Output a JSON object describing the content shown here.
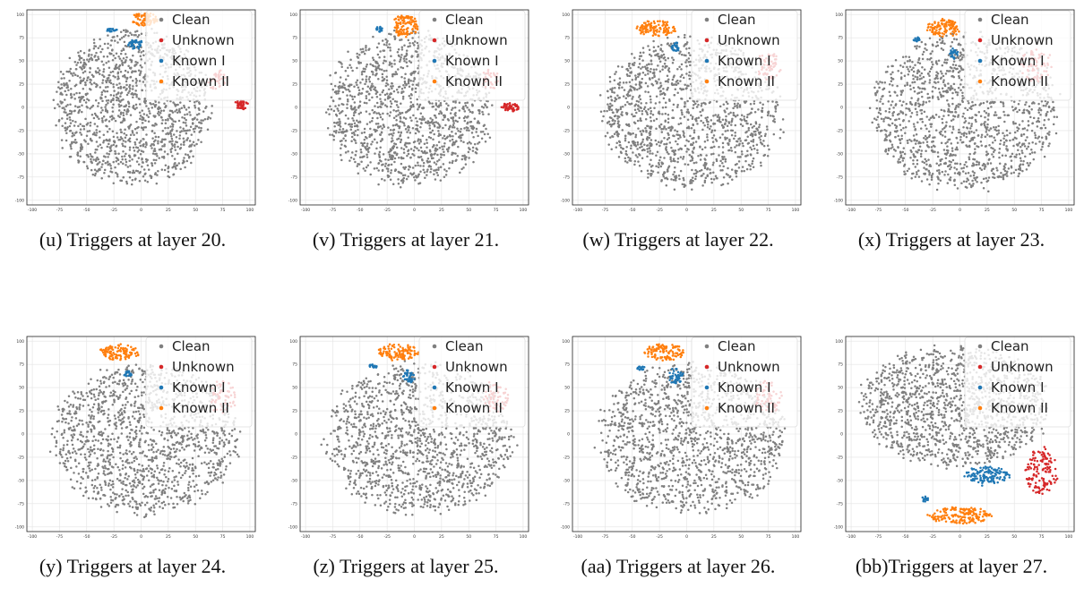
{
  "legend": {
    "entries": [
      {
        "label": "Clean",
        "color": "#7f7f7f"
      },
      {
        "label": "Unknown",
        "color": "#d62728"
      },
      {
        "label": "Known I",
        "color": "#1f77b4"
      },
      {
        "label": "Known II",
        "color": "#ff7f0e"
      }
    ]
  },
  "chart_data": [
    {
      "type": "scatter",
      "caption": "(u) Triggers at layer 20.",
      "xlim": [
        -105,
        105
      ],
      "ylim": [
        -105,
        105
      ],
      "xticks": [
        -100,
        -75,
        -50,
        -25,
        0,
        25,
        50,
        75,
        100
      ],
      "yticks": [
        100,
        75,
        50,
        25,
        0,
        -25,
        -50,
        -75,
        -100
      ],
      "clusters": [
        {
          "series": "Clean",
          "cx": -8,
          "cy": 0,
          "rx": 70,
          "ry": 82,
          "n": 1400
        },
        {
          "series": "Known II",
          "cx": 3,
          "cy": 95,
          "rx": 12,
          "ry": 7,
          "n": 90
        },
        {
          "series": "Known I",
          "cx": -27,
          "cy": 83,
          "rx": 5,
          "ry": 2,
          "n": 20
        },
        {
          "series": "Known I",
          "cx": -5,
          "cy": 68,
          "rx": 7,
          "ry": 5,
          "n": 35
        },
        {
          "series": "Unknown",
          "cx": 92,
          "cy": 3,
          "rx": 6,
          "ry": 5,
          "n": 45
        },
        {
          "series": "Unknown",
          "cx": 70,
          "cy": 28,
          "rx": 8,
          "ry": 12,
          "n": 40
        }
      ]
    },
    {
      "type": "scatter",
      "caption": "(v) Triggers at layer 21.",
      "xlim": [
        -105,
        105
      ],
      "ylim": [
        -105,
        105
      ],
      "xticks": [
        -100,
        -75,
        -50,
        -25,
        0,
        25,
        50,
        75,
        100
      ],
      "yticks": [
        100,
        75,
        50,
        25,
        0,
        -25,
        -50,
        -75,
        -100
      ],
      "clusters": [
        {
          "series": "Clean",
          "cx": -5,
          "cy": -2,
          "rx": 75,
          "ry": 82,
          "n": 1400
        },
        {
          "series": "Known II",
          "cx": -8,
          "cy": 88,
          "rx": 12,
          "ry": 12,
          "n": 110
        },
        {
          "series": "Known I",
          "cx": -33,
          "cy": 84,
          "rx": 4,
          "ry": 3,
          "n": 20
        },
        {
          "series": "Unknown",
          "cx": 88,
          "cy": 0,
          "rx": 8,
          "ry": 5,
          "n": 50
        },
        {
          "series": "Unknown",
          "cx": 70,
          "cy": 30,
          "rx": 8,
          "ry": 12,
          "n": 40
        }
      ]
    },
    {
      "type": "scatter",
      "caption": "(w) Triggers at layer 22.",
      "xlim": [
        -105,
        105
      ],
      "ylim": [
        -105,
        105
      ],
      "xticks": [
        -100,
        -75,
        -50,
        -25,
        0,
        25,
        50,
        75,
        100
      ],
      "yticks": [
        100,
        75,
        50,
        25,
        0,
        -25,
        -50,
        -75,
        -100
      ],
      "clusters": [
        {
          "series": "Clean",
          "cx": 5,
          "cy": -5,
          "rx": 82,
          "ry": 80,
          "n": 1400
        },
        {
          "series": "Known II",
          "cx": -28,
          "cy": 85,
          "rx": 18,
          "ry": 9,
          "n": 110
        },
        {
          "series": "Known I",
          "cx": -10,
          "cy": 65,
          "rx": 4,
          "ry": 5,
          "n": 25
        },
        {
          "series": "Unknown",
          "cx": 75,
          "cy": 45,
          "rx": 12,
          "ry": 15,
          "n": 60
        }
      ]
    },
    {
      "type": "scatter",
      "caption": "(x) Triggers at layer 23.",
      "xlim": [
        -105,
        105
      ],
      "ylim": [
        -105,
        105
      ],
      "xticks": [
        -100,
        -75,
        -50,
        -25,
        0,
        25,
        50,
        75,
        100
      ],
      "yticks": [
        100,
        75,
        50,
        25,
        0,
        -25,
        -50,
        -75,
        -100
      ],
      "clusters": [
        {
          "series": "Clean",
          "cx": 5,
          "cy": -5,
          "rx": 85,
          "ry": 82,
          "n": 1400
        },
        {
          "series": "Known II",
          "cx": -15,
          "cy": 85,
          "rx": 15,
          "ry": 10,
          "n": 110
        },
        {
          "series": "Known I",
          "cx": -40,
          "cy": 73,
          "rx": 3,
          "ry": 3,
          "n": 20
        },
        {
          "series": "Known I",
          "cx": -5,
          "cy": 58,
          "rx": 4,
          "ry": 6,
          "n": 25
        },
        {
          "series": "Unknown",
          "cx": 70,
          "cy": 45,
          "rx": 15,
          "ry": 18,
          "n": 70
        }
      ]
    },
    {
      "type": "scatter",
      "caption": "(y) Triggers at layer 24.",
      "xlim": [
        -105,
        105
      ],
      "ylim": [
        -105,
        105
      ],
      "xticks": [
        -100,
        -75,
        -50,
        -25,
        0,
        25,
        50,
        75,
        100
      ],
      "yticks": [
        100,
        75,
        50,
        25,
        0,
        -25,
        -50,
        -75,
        -100
      ],
      "clusters": [
        {
          "series": "Clean",
          "cx": 5,
          "cy": -5,
          "rx": 85,
          "ry": 80,
          "n": 1400
        },
        {
          "series": "Known II",
          "cx": -20,
          "cy": 88,
          "rx": 18,
          "ry": 9,
          "n": 110
        },
        {
          "series": "Known I",
          "cx": -12,
          "cy": 65,
          "rx": 4,
          "ry": 3,
          "n": 20
        },
        {
          "series": "Unknown",
          "cx": 75,
          "cy": 40,
          "rx": 12,
          "ry": 18,
          "n": 60
        }
      ]
    },
    {
      "type": "scatter",
      "caption": "(z) Triggers at layer 25.",
      "xlim": [
        -105,
        105
      ],
      "ylim": [
        -105,
        105
      ],
      "xticks": [
        -100,
        -75,
        -50,
        -25,
        0,
        25,
        50,
        75,
        100
      ],
      "yticks": [
        100,
        75,
        50,
        25,
        0,
        -25,
        -50,
        -75,
        -100
      ],
      "clusters": [
        {
          "series": "Clean",
          "cx": 5,
          "cy": -5,
          "rx": 85,
          "ry": 80,
          "n": 1400
        },
        {
          "series": "Known II",
          "cx": -15,
          "cy": 88,
          "rx": 18,
          "ry": 9,
          "n": 110
        },
        {
          "series": "Known I",
          "cx": -38,
          "cy": 73,
          "rx": 4,
          "ry": 2,
          "n": 15
        },
        {
          "series": "Known I",
          "cx": -5,
          "cy": 62,
          "rx": 5,
          "ry": 7,
          "n": 35
        },
        {
          "series": "Unknown",
          "cx": 75,
          "cy": 40,
          "rx": 12,
          "ry": 18,
          "n": 60
        }
      ]
    },
    {
      "type": "scatter",
      "caption": "(aa) Triggers at layer 26.",
      "xlim": [
        -105,
        105
      ],
      "ylim": [
        -105,
        105
      ],
      "xticks": [
        -100,
        -75,
        -50,
        -25,
        0,
        25,
        50,
        75,
        100
      ],
      "yticks": [
        100,
        75,
        50,
        25,
        0,
        -25,
        -50,
        -75,
        -100
      ],
      "clusters": [
        {
          "series": "Clean",
          "cx": 5,
          "cy": -5,
          "rx": 85,
          "ry": 80,
          "n": 1400
        },
        {
          "series": "Known II",
          "cx": -20,
          "cy": 88,
          "rx": 18,
          "ry": 9,
          "n": 110
        },
        {
          "series": "Known I",
          "cx": -42,
          "cy": 71,
          "rx": 4,
          "ry": 2,
          "n": 15
        },
        {
          "series": "Known I",
          "cx": -10,
          "cy": 62,
          "rx": 7,
          "ry": 9,
          "n": 45
        },
        {
          "series": "Unknown",
          "cx": 75,
          "cy": 40,
          "rx": 12,
          "ry": 18,
          "n": 60
        }
      ]
    },
    {
      "type": "scatter",
      "caption": "(bb)Triggers at layer 27.",
      "xlim": [
        -105,
        105
      ],
      "ylim": [
        -105,
        105
      ],
      "xticks": [
        -100,
        -75,
        -50,
        -25,
        0,
        25,
        50,
        75,
        100
      ],
      "yticks": [
        100,
        75,
        50,
        25,
        0,
        -25,
        -50,
        -75,
        -100
      ],
      "clusters": [
        {
          "series": "Clean",
          "cx": -5,
          "cy": 30,
          "rx": 85,
          "ry": 65,
          "n": 1400
        },
        {
          "series": "Unknown",
          "cx": 75,
          "cy": -40,
          "rx": 15,
          "ry": 25,
          "n": 130
        },
        {
          "series": "Known I",
          "cx": 25,
          "cy": -45,
          "rx": 20,
          "ry": 10,
          "n": 120
        },
        {
          "series": "Known I",
          "cx": -32,
          "cy": -70,
          "rx": 3,
          "ry": 3,
          "n": 15
        },
        {
          "series": "Known II",
          "cx": 0,
          "cy": -88,
          "rx": 28,
          "ry": 9,
          "n": 160
        }
      ]
    }
  ]
}
